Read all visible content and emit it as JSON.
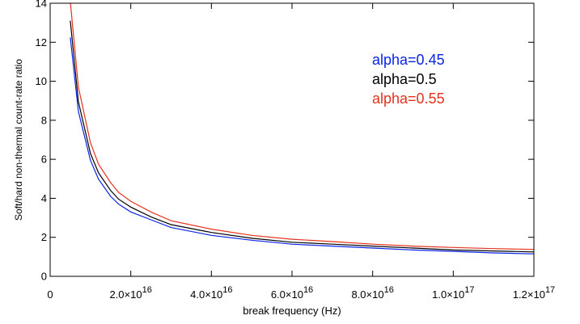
{
  "chart_data": {
    "type": "line",
    "title": "",
    "xlabel": "break frequency (Hz)",
    "ylabel": "Soft/hard non-thermal count-rate ratio",
    "xlim": [
      0,
      1.2e+17
    ],
    "ylim": [
      0,
      14
    ],
    "x_ticks": [
      {
        "value": 0,
        "base": "0",
        "exp": ""
      },
      {
        "value": 2e+16,
        "base": "2.0×10",
        "exp": "16"
      },
      {
        "value": 4e+16,
        "base": "4.0×10",
        "exp": "16"
      },
      {
        "value": 6e+16,
        "base": "6.0×10",
        "exp": "16"
      },
      {
        "value": 8e+16,
        "base": "8.0×10",
        "exp": "16"
      },
      {
        "value": 1e+17,
        "base": "1.0×10",
        "exp": "17"
      },
      {
        "value": 1.2e+17,
        "base": "1.2×10",
        "exp": "17"
      }
    ],
    "y_ticks": [
      {
        "value": 0,
        "label": "0"
      },
      {
        "value": 2,
        "label": "2"
      },
      {
        "value": 4,
        "label": "4"
      },
      {
        "value": 6,
        "label": "6"
      },
      {
        "value": 8,
        "label": "8"
      },
      {
        "value": 10,
        "label": "10"
      },
      {
        "value": 12,
        "label": "12"
      },
      {
        "value": 14,
        "label": "14"
      }
    ],
    "grid": false,
    "legend_position": "top-right",
    "x": [
      5000000000000000.0,
      7000000000000000.0,
      1e+16,
      1.2e+16,
      1.5e+16,
      1.7e+16,
      2e+16,
      2.5e+16,
      3e+16,
      4e+16,
      5e+16,
      6e+16,
      7e+16,
      8e+16,
      9e+16,
      1e+17,
      1.1e+17,
      1.2e+17
    ],
    "series": [
      {
        "name": "alpha=0.45",
        "color": "#0a23e6",
        "values": [
          12.25,
          8.45,
          5.95,
          4.98,
          4.1,
          3.7,
          3.3,
          2.9,
          2.5,
          2.1,
          1.85,
          1.65,
          1.55,
          1.45,
          1.35,
          1.28,
          1.2,
          1.15
        ]
      },
      {
        "name": "alpha=0.5",
        "color": "#000000",
        "values": [
          13.1,
          8.95,
          6.3,
          5.3,
          4.4,
          3.95,
          3.55,
          3.05,
          2.65,
          2.25,
          1.95,
          1.75,
          1.65,
          1.55,
          1.45,
          1.35,
          1.3,
          1.25
        ]
      },
      {
        "name": "alpha=0.55",
        "color": "#e6321e",
        "values": [
          14.1,
          9.7,
          6.85,
          5.75,
          4.8,
          4.3,
          3.85,
          3.3,
          2.85,
          2.42,
          2.1,
          1.9,
          1.78,
          1.65,
          1.55,
          1.48,
          1.42,
          1.38
        ]
      }
    ]
  }
}
